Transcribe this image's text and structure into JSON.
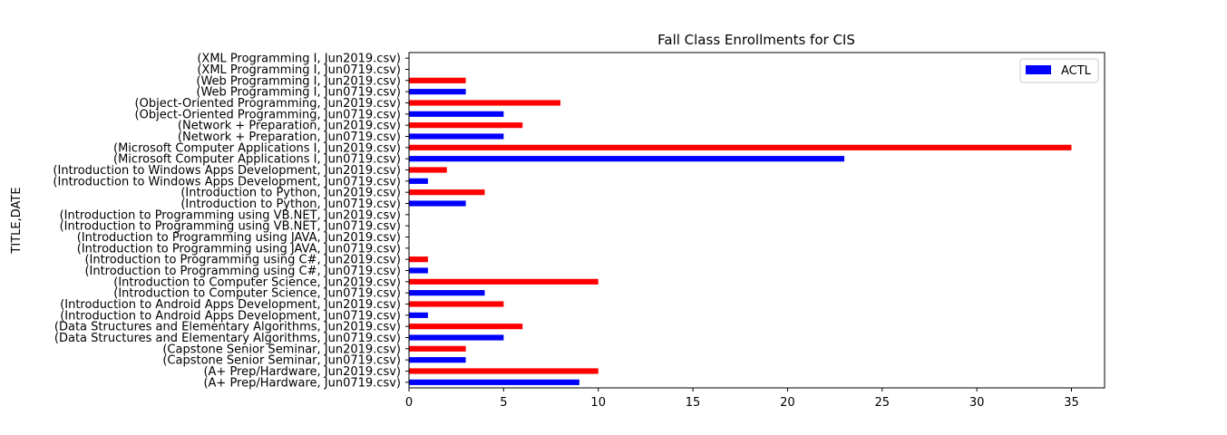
{
  "chart_data": {
    "type": "bar",
    "orientation": "horizontal",
    "title": "Fall Class Enrollments for CIS",
    "xlabel": "",
    "ylabel": "TITLE,DATE",
    "xlim": [
      0,
      36.75
    ],
    "xticks": [
      0,
      5,
      10,
      15,
      20,
      25,
      30,
      35
    ],
    "grid": false,
    "legend": {
      "placement": "top-right",
      "entries": [
        {
          "label": "ACTL",
          "color": "#0000ff"
        }
      ]
    },
    "categories": [
      "(A+ Prep/Hardware, Jun0719.csv)",
      "(A+ Prep/Hardware, Jun2019.csv)",
      "(Capstone Senior Seminar, Jun0719.csv)",
      "(Capstone Senior Seminar, Jun2019.csv)",
      "(Data Structures and Elementary Algorithms, Jun0719.csv)",
      "(Data Structures and Elementary Algorithms, Jun2019.csv)",
      "(Introduction to Android Apps Development, Jun0719.csv)",
      "(Introduction to Android Apps Development, Jun2019.csv)",
      "(Introduction to Computer Science, Jun0719.csv)",
      "(Introduction to Computer Science, Jun2019.csv)",
      "(Introduction to Programming using C#, Jun0719.csv)",
      "(Introduction to Programming using C#, Jun2019.csv)",
      "(Introduction to Programming using JAVA, Jun0719.csv)",
      "(Introduction to Programming using JAVA, Jun2019.csv)",
      "(Introduction to Programming using VB.NET, Jun0719.csv)",
      "(Introduction to Programming using VB.NET, Jun2019.csv)",
      "(Introduction to Python, Jun0719.csv)",
      "(Introduction to Python, Jun2019.csv)",
      "(Introduction to Windows Apps Development, Jun0719.csv)",
      "(Introduction to Windows Apps Development, Jun2019.csv)",
      "(Microsoft Computer Applications I, Jun0719.csv)",
      "(Microsoft Computer Applications I, Jun2019.csv)",
      "(Network + Preparation, Jun0719.csv)",
      "(Network + Preparation, Jun2019.csv)",
      "(Object-Oriented Programming, Jun0719.csv)",
      "(Object-Oriented Programming, Jun2019.csv)",
      "(Web Programming I, Jun0719.csv)",
      "(Web Programming I, Jun2019.csv)",
      "(XML Programming I, Jun0719.csv)",
      "(XML Programming I, Jun2019.csv)"
    ],
    "values": [
      9,
      10,
      3,
      3,
      5,
      6,
      1,
      5,
      4,
      10,
      1,
      1,
      0,
      0,
      0,
      0,
      3,
      4,
      1,
      2,
      23,
      35,
      5,
      6,
      5,
      8,
      3,
      3,
      0,
      0
    ],
    "bar_colors": [
      "#0000ff",
      "#ff0000",
      "#0000ff",
      "#ff0000",
      "#0000ff",
      "#ff0000",
      "#0000ff",
      "#ff0000",
      "#0000ff",
      "#ff0000",
      "#0000ff",
      "#ff0000",
      "#0000ff",
      "#ff0000",
      "#0000ff",
      "#ff0000",
      "#0000ff",
      "#ff0000",
      "#0000ff",
      "#ff0000",
      "#0000ff",
      "#ff0000",
      "#0000ff",
      "#ff0000",
      "#0000ff",
      "#ff0000",
      "#0000ff",
      "#ff0000",
      "#0000ff",
      "#ff0000"
    ]
  }
}
